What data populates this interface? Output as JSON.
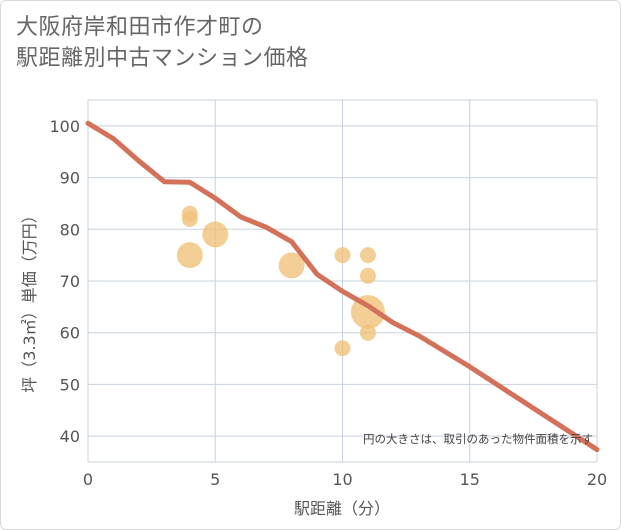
{
  "chart_data": {
    "type": "scatter",
    "title_lines": [
      "大阪府岸和田市作才町の",
      "駅距離別中古マンション価格"
    ],
    "xlabel": "駅距離（分）",
    "ylabel": "坪（3.3㎡）単価（万円）",
    "xlim": [
      0,
      20
    ],
    "ylim": [
      35,
      105
    ],
    "x_ticks": [
      0,
      5,
      10,
      15,
      20
    ],
    "y_ticks": [
      40,
      50,
      60,
      70,
      80,
      90,
      100
    ],
    "grid": true,
    "note": "円の大きさは、取引のあった物件面積を示す",
    "colors": {
      "bubble": "#f0c278",
      "line": "#d4715a",
      "grid": "#c8d3de"
    },
    "points": [
      {
        "x": 4,
        "y": 83,
        "size": 1
      },
      {
        "x": 4,
        "y": 82,
        "size": 1
      },
      {
        "x": 4,
        "y": 75,
        "size": 2
      },
      {
        "x": 5,
        "y": 79,
        "size": 2
      },
      {
        "x": 8,
        "y": 73,
        "size": 2
      },
      {
        "x": 10,
        "y": 75,
        "size": 1
      },
      {
        "x": 10,
        "y": 57,
        "size": 1
      },
      {
        "x": 11,
        "y": 75,
        "size": 1
      },
      {
        "x": 11,
        "y": 71,
        "size": 1
      },
      {
        "x": 11,
        "y": 64,
        "size": 3
      },
      {
        "x": 11,
        "y": 60,
        "size": 1
      }
    ],
    "trend": {
      "x": [
        0,
        1,
        2,
        3,
        4,
        5,
        6,
        7,
        8,
        9,
        10,
        11,
        12,
        13,
        14,
        15,
        16,
        17,
        18,
        19,
        20
      ],
      "y": [
        100.5,
        97.5,
        93.2,
        89.2,
        89.1,
        86.0,
        82.4,
        80.4,
        77.6,
        71.3,
        68.0,
        65.2,
        61.9,
        59.4,
        56.4,
        53.4,
        50.2,
        47.0,
        43.8,
        40.6,
        37.4
      ]
    }
  }
}
